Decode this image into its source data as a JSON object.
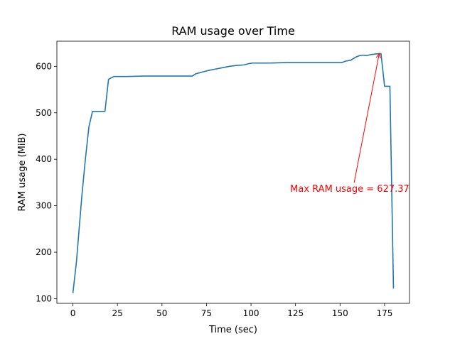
{
  "chart_data": {
    "type": "line",
    "title": "RAM usage over Time",
    "xlabel": "Time (sec)",
    "ylabel": "RAM usage (MiB)",
    "xlim": [
      -9,
      189
    ],
    "ylim": [
      90,
      654
    ],
    "xticks": [
      0,
      25,
      50,
      75,
      100,
      125,
      150,
      175
    ],
    "yticks": [
      100,
      200,
      300,
      400,
      500,
      600
    ],
    "grid": false,
    "series": [
      {
        "color": "#1f77b4",
        "x": [
          0,
          2,
          5,
          7,
          9,
          11,
          13,
          15,
          18,
          20,
          23,
          30,
          40,
          50,
          60,
          67,
          69,
          72,
          76,
          80,
          84,
          88,
          92,
          96,
          99,
          101,
          105,
          110,
          120,
          130,
          140,
          151,
          153,
          156,
          159,
          161,
          163,
          165,
          167,
          169,
          171,
          173,
          175,
          177,
          178,
          180
        ],
        "values": [
          112,
          180,
          320,
          400,
          470,
          503,
          503,
          503,
          503,
          572,
          578,
          578,
          579,
          579,
          579,
          579,
          584,
          587,
          591,
          594,
          597,
          600,
          602,
          603,
          606,
          607,
          607,
          607,
          608,
          608,
          608,
          608,
          611,
          613,
          620,
          623,
          624,
          623,
          625,
          626,
          627,
          627.37,
          557,
          557,
          557,
          122
        ]
      }
    ],
    "annotation": {
      "text": "Max RAM usage = 627.37",
      "color": "#ff0000",
      "xy": [
        172,
        627.37
      ],
      "xytext": [
        122,
        330
      ]
    }
  }
}
